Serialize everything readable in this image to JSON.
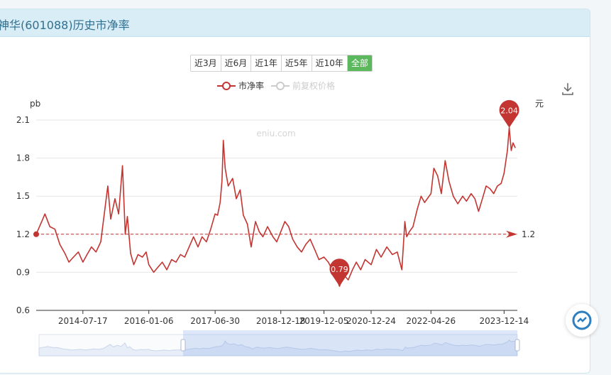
{
  "header": {
    "title": "神华(601088)历史市净率"
  },
  "range_buttons": [
    {
      "label": "近3月",
      "active": false
    },
    {
      "label": "近6月",
      "active": false
    },
    {
      "label": "近1年",
      "active": false
    },
    {
      "label": "近5年",
      "active": false
    },
    {
      "label": "近10年",
      "active": false
    },
    {
      "label": "全部",
      "active": true
    }
  ],
  "legend": [
    {
      "label": "市净率",
      "color": "#c23531",
      "active": true
    },
    {
      "label": "前复权价格",
      "color": "#cccccc",
      "active": false
    }
  ],
  "watermark": "eniu.com",
  "colors": {
    "series": "#c23531",
    "inactive": "#cccccc",
    "accent": "#5cb85c",
    "header_bg": "#d9edf7",
    "header_text": "#31708f"
  },
  "chart_data": {
    "type": "line",
    "ylabel": "pb",
    "y2label": "元",
    "ylim": [
      0.6,
      2.1
    ],
    "yticks": [
      0.6,
      0.9,
      1.2,
      1.5,
      1.8,
      2.1
    ],
    "xlim": [
      "2013-07-01",
      "2024-03-31"
    ],
    "xticks": [
      "2014-07-17",
      "2016-01-06",
      "2017-06-30",
      "2018-12-18",
      "2019-12-05",
      "2020-12-24",
      "2022-04-26",
      "2023-12-14"
    ],
    "grid": true,
    "series": [
      {
        "name": "市净率",
        "points": [
          [
            "2013-07-01",
            1.2
          ],
          [
            "2013-08-15",
            1.3
          ],
          [
            "2013-09-10",
            1.36
          ],
          [
            "2013-10-20",
            1.26
          ],
          [
            "2013-12-01",
            1.24
          ],
          [
            "2014-01-10",
            1.12
          ],
          [
            "2014-02-20",
            1.05
          ],
          [
            "2014-03-25",
            0.98
          ],
          [
            "2014-05-01",
            1.02
          ],
          [
            "2014-06-10",
            1.06
          ],
          [
            "2014-07-17",
            0.98
          ],
          [
            "2014-08-20",
            1.04
          ],
          [
            "2014-09-25",
            1.1
          ],
          [
            "2014-11-01",
            1.06
          ],
          [
            "2014-12-10",
            1.14
          ],
          [
            "2015-01-10",
            1.38
          ],
          [
            "2015-02-05",
            1.58
          ],
          [
            "2015-03-01",
            1.32
          ],
          [
            "2015-04-05",
            1.48
          ],
          [
            "2015-05-05",
            1.36
          ],
          [
            "2015-06-05",
            1.74
          ],
          [
            "2015-06-28",
            1.2
          ],
          [
            "2015-07-15",
            1.34
          ],
          [
            "2015-08-10",
            1.05
          ],
          [
            "2015-09-05",
            0.96
          ],
          [
            "2015-10-10",
            1.04
          ],
          [
            "2015-11-15",
            1.02
          ],
          [
            "2015-12-15",
            1.06
          ],
          [
            "2016-01-06",
            0.96
          ],
          [
            "2016-02-15",
            0.9
          ],
          [
            "2016-03-20",
            0.94
          ],
          [
            "2016-04-25",
            0.98
          ],
          [
            "2016-06-01",
            0.92
          ],
          [
            "2016-07-10",
            1.0
          ],
          [
            "2016-08-15",
            0.98
          ],
          [
            "2016-09-20",
            1.04
          ],
          [
            "2016-10-25",
            1.02
          ],
          [
            "2016-11-30",
            1.1
          ],
          [
            "2017-01-05",
            1.18
          ],
          [
            "2017-02-10",
            1.1
          ],
          [
            "2017-03-15",
            1.18
          ],
          [
            "2017-04-20",
            1.14
          ],
          [
            "2017-05-25",
            1.24
          ],
          [
            "2017-06-30",
            1.36
          ],
          [
            "2017-07-20",
            1.35
          ],
          [
            "2017-08-10",
            1.45
          ],
          [
            "2017-08-25",
            1.62
          ],
          [
            "2017-09-05",
            1.94
          ],
          [
            "2017-09-20",
            1.72
          ],
          [
            "2017-10-15",
            1.58
          ],
          [
            "2017-11-20",
            1.64
          ],
          [
            "2017-12-20",
            1.48
          ],
          [
            "2018-01-20",
            1.55
          ],
          [
            "2018-02-15",
            1.35
          ],
          [
            "2018-03-20",
            1.28
          ],
          [
            "2018-04-20",
            1.1
          ],
          [
            "2018-05-25",
            1.3
          ],
          [
            "2018-06-25",
            1.22
          ],
          [
            "2018-07-25",
            1.18
          ],
          [
            "2018-09-01",
            1.26
          ],
          [
            "2018-10-15",
            1.18
          ],
          [
            "2018-11-15",
            1.14
          ],
          [
            "2018-12-18",
            1.22
          ],
          [
            "2019-01-20",
            1.3
          ],
          [
            "2019-02-20",
            1.26
          ],
          [
            "2019-03-25",
            1.16
          ],
          [
            "2019-05-01",
            1.1
          ],
          [
            "2019-06-05",
            1.06
          ],
          [
            "2019-07-10",
            1.12
          ],
          [
            "2019-08-15",
            1.16
          ],
          [
            "2019-09-20",
            1.08
          ],
          [
            "2019-10-25",
            1.0
          ],
          [
            "2019-12-05",
            1.02
          ],
          [
            "2020-01-10",
            0.98
          ],
          [
            "2020-02-10",
            0.92
          ],
          [
            "2020-03-15",
            0.86
          ],
          [
            "2020-04-10",
            0.79
          ],
          [
            "2020-05-15",
            0.88
          ],
          [
            "2020-06-20",
            0.84
          ],
          [
            "2020-07-25",
            0.92
          ],
          [
            "2020-08-25",
            0.98
          ],
          [
            "2020-09-30",
            0.92
          ],
          [
            "2020-11-05",
            1.0
          ],
          [
            "2020-12-24",
            0.96
          ],
          [
            "2021-02-05",
            1.08
          ],
          [
            "2021-03-15",
            1.02
          ],
          [
            "2021-05-01",
            1.1
          ],
          [
            "2021-06-15",
            1.04
          ],
          [
            "2021-07-25",
            1.06
          ],
          [
            "2021-09-01",
            0.92
          ],
          [
            "2021-09-25",
            1.3
          ],
          [
            "2021-10-10",
            1.18
          ],
          [
            "2021-11-01",
            1.22
          ],
          [
            "2021-12-01",
            1.26
          ],
          [
            "2022-01-05",
            1.4
          ],
          [
            "2022-02-05",
            1.5
          ],
          [
            "2022-03-05",
            1.45
          ],
          [
            "2022-04-26",
            1.52
          ],
          [
            "2022-05-20",
            1.72
          ],
          [
            "2022-06-20",
            1.66
          ],
          [
            "2022-07-20",
            1.52
          ],
          [
            "2022-08-20",
            1.78
          ],
          [
            "2022-09-20",
            1.62
          ],
          [
            "2022-10-25",
            1.5
          ],
          [
            "2022-12-01",
            1.44
          ],
          [
            "2023-01-10",
            1.5
          ],
          [
            "2023-02-10",
            1.46
          ],
          [
            "2023-03-20",
            1.52
          ],
          [
            "2023-04-20",
            1.48
          ],
          [
            "2023-05-20",
            1.38
          ],
          [
            "2023-06-20",
            1.48
          ],
          [
            "2023-07-20",
            1.58
          ],
          [
            "2023-08-20",
            1.56
          ],
          [
            "2023-09-20",
            1.52
          ],
          [
            "2023-10-20",
            1.58
          ],
          [
            "2023-11-20",
            1.6
          ],
          [
            "2023-12-14",
            1.68
          ],
          [
            "2024-01-10",
            1.86
          ],
          [
            "2024-01-25",
            2.04
          ],
          [
            "2024-02-10",
            1.86
          ],
          [
            "2024-02-25",
            1.92
          ],
          [
            "2024-03-15",
            1.88
          ]
        ]
      }
    ],
    "markpoints": [
      {
        "label": "2.04",
        "x": "2024-01-25",
        "y": 2.04
      },
      {
        "label": "0.79",
        "x": "2020-04-10",
        "y": 0.79
      }
    ],
    "markline": {
      "label": "1.2",
      "y": 1.2
    }
  }
}
